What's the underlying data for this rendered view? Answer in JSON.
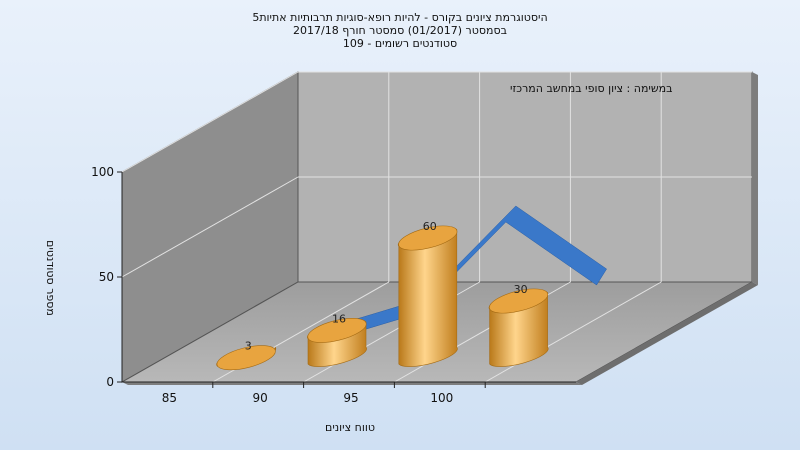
{
  "chart_data": {
    "type": "bar",
    "title_lines": [
      "היסטוגרמת ציונים בקורס - להיות רופא-סוגיות תרבותיות אתיות5",
      "בסמסטר   (01/2017)  סמסטר חורף 2017/18",
      "סטודנטים רשומים - 109"
    ],
    "annotation": "במשימה : ציון סופי במחשב המרכזי",
    "xlabel": "טווח ציונים",
    "ylabel": "מספר סטודנטים",
    "categories": [
      "85",
      "90",
      "95",
      "100"
    ],
    "values": [
      3,
      16,
      60,
      30
    ],
    "y_ticks": [
      "0",
      "50",
      "100"
    ],
    "ylim": [
      0,
      100
    ],
    "series": [
      {
        "type": "bar",
        "values": [
          3,
          16,
          60,
          30
        ],
        "color": "#e6a23c"
      },
      {
        "type": "area",
        "values": [
          3,
          16,
          60,
          30
        ],
        "color": "#3a78c9"
      }
    ]
  }
}
